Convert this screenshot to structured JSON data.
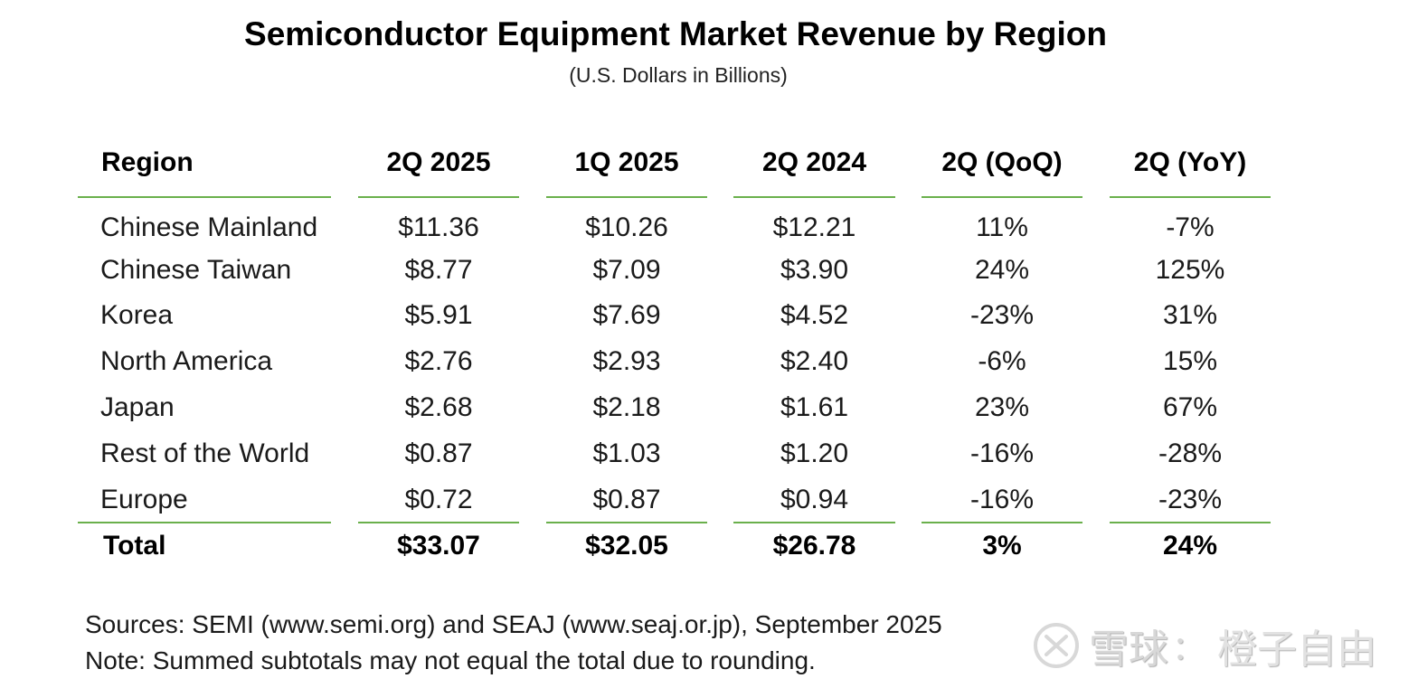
{
  "header": {
    "title": "Semiconductor Equipment Market Revenue by Region",
    "subtitle": "(U.S. Dollars in Billions)"
  },
  "table": {
    "columns": [
      "Region",
      "2Q 2025",
      "1Q 2025",
      "2Q 2024",
      "2Q (QoQ)",
      "2Q (YoY)"
    ],
    "rows": [
      {
        "region": "Chinese Mainland",
        "q2_2025": "$11.36",
        "q1_2025": "$10.26",
        "q2_2024": "$12.21",
        "qoq": "11%",
        "yoy": "-7%"
      },
      {
        "region": "Chinese Taiwan",
        "q2_2025": "$8.77",
        "q1_2025": "$7.09",
        "q2_2024": "$3.90",
        "qoq": "24%",
        "yoy": "125%"
      },
      {
        "region": "Korea",
        "q2_2025": "$5.91",
        "q1_2025": "$7.69",
        "q2_2024": "$4.52",
        "qoq": "-23%",
        "yoy": "31%"
      },
      {
        "region": "North America",
        "q2_2025": "$2.76",
        "q1_2025": "$2.93",
        "q2_2024": "$2.40",
        "qoq": "-6%",
        "yoy": "15%"
      },
      {
        "region": "Japan",
        "q2_2025": "$2.68",
        "q1_2025": "$2.18",
        "q2_2024": "$1.61",
        "qoq": "23%",
        "yoy": "67%"
      },
      {
        "region": "Rest of the World",
        "q2_2025": "$0.87",
        "q1_2025": "$1.03",
        "q2_2024": "$1.20",
        "qoq": "-16%",
        "yoy": "-28%"
      },
      {
        "region": "Europe",
        "q2_2025": "$0.72",
        "q1_2025": "$0.87",
        "q2_2024": "$0.94",
        "qoq": "-16%",
        "yoy": "-23%"
      }
    ],
    "total": {
      "region": "Total",
      "q2_2025": "$33.07",
      "q1_2025": "$32.05",
      "q2_2024": "$26.78",
      "qoq": "3%",
      "yoy": "24%"
    },
    "rule_color": "#6ab04c"
  },
  "footer": {
    "sources": "Sources: SEMI (www.semi.org) and SEAJ (www.seaj.or.jp), September 2025",
    "note": "Note: Summed subtotals may not equal the total due to rounding."
  },
  "watermark": {
    "icon": "snowball-logo-icon",
    "brand": "雪球",
    "separator": "：",
    "user": "橙子自由"
  }
}
